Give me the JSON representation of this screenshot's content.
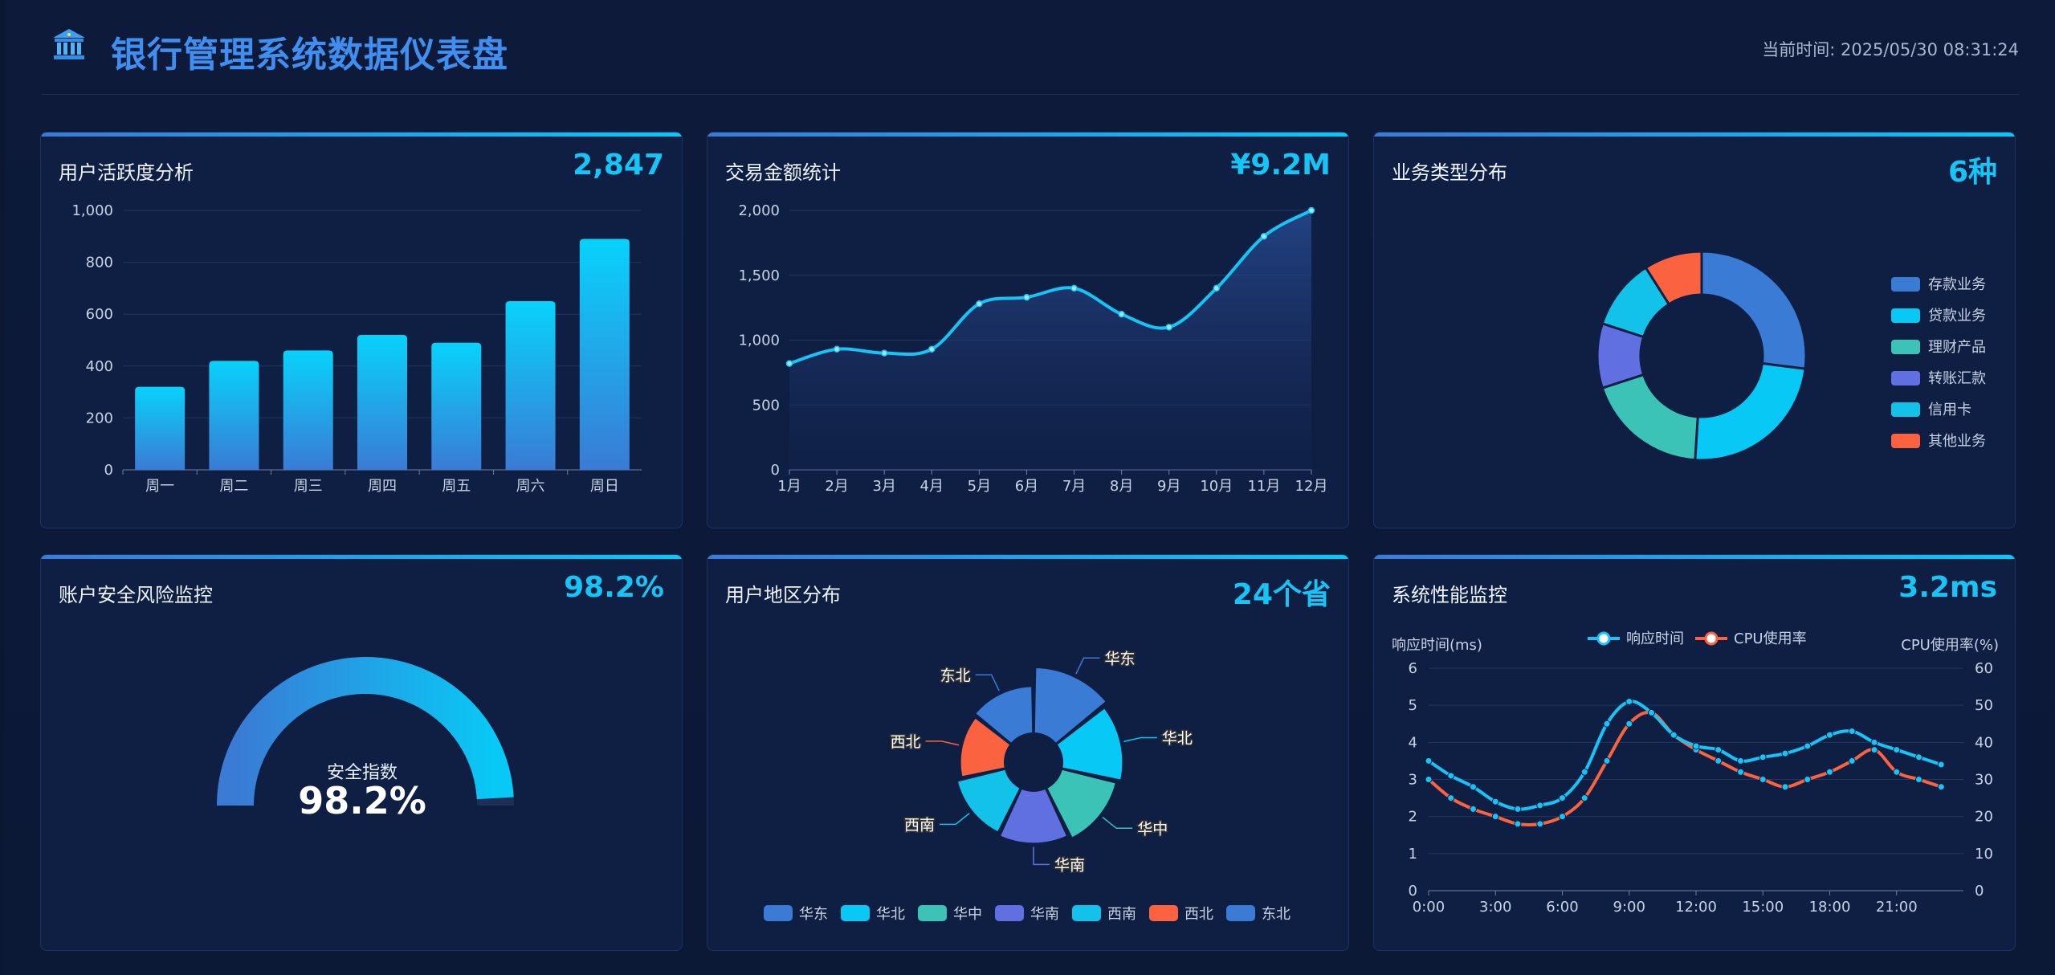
{
  "header": {
    "title": "银行管理系统数据仪表盘",
    "time_label": "当前时间: 2025/05/30 08:31:24",
    "logo_icon": "bank-icon"
  },
  "colors": {
    "accent": "#16c4f5",
    "blue": "#3a7bd5",
    "cyan": "#08c9f6",
    "teal": "#3cc3b8",
    "purple": "#6170e0",
    "orange": "#fb6340"
  },
  "cards": {
    "activity": {
      "title": "用户活跃度分析",
      "value": "2,847"
    },
    "amount": {
      "title": "交易金额统计",
      "value": "¥9.2M"
    },
    "business": {
      "title": "业务类型分布",
      "value": "6种"
    },
    "security": {
      "title": "账户安全风险监控",
      "value": "98.2%",
      "gauge_label": "安全指数",
      "gauge_value": "98.2%"
    },
    "region": {
      "title": "用户地区分布",
      "value": "24个省"
    },
    "performance": {
      "title": "系统性能监控",
      "value": "3.2ms"
    }
  },
  "chart_data": [
    {
      "id": "activity",
      "type": "bar",
      "categories": [
        "周一",
        "周二",
        "周三",
        "周四",
        "周五",
        "周六",
        "周日"
      ],
      "values": [
        320,
        420,
        460,
        520,
        490,
        650,
        890
      ],
      "ylim": [
        0,
        1000
      ],
      "yticks": [
        "0",
        "200",
        "400",
        "600",
        "800",
        "1,000"
      ],
      "grid": true
    },
    {
      "id": "amount",
      "type": "area",
      "categories": [
        "1月",
        "2月",
        "3月",
        "4月",
        "5月",
        "6月",
        "7月",
        "8月",
        "9月",
        "10月",
        "11月",
        "12月"
      ],
      "values": [
        820,
        930,
        900,
        930,
        1280,
        1330,
        1400,
        1200,
        1100,
        1400,
        1800,
        2000
      ],
      "ylim": [
        0,
        2000
      ],
      "yticks": [
        "0",
        "500",
        "1,000",
        "1,500",
        "2,000"
      ],
      "grid": true
    },
    {
      "id": "business",
      "type": "pie",
      "labels": [
        "存款业务",
        "贷款业务",
        "理财产品",
        "转账汇款",
        "信用卡",
        "其他业务"
      ],
      "values": [
        27,
        24,
        19,
        10,
        11,
        9
      ],
      "colors": [
        "#3a7bd5",
        "#08c9f6",
        "#3cc3b8",
        "#6170e0",
        "#12c2e9",
        "#fb6340"
      ],
      "legend": "right"
    },
    {
      "id": "security",
      "type": "gauge",
      "value": 98.2,
      "max": 100
    },
    {
      "id": "region",
      "type": "pie",
      "labels": [
        "华东",
        "华北",
        "华中",
        "华南",
        "西南",
        "西北",
        "东北"
      ],
      "values": [
        90,
        80,
        72,
        65,
        60,
        50,
        55
      ],
      "colors": [
        "#3a7bd5",
        "#08c9f6",
        "#3cc3b8",
        "#6170e0",
        "#12c2e9",
        "#fb6340",
        "#3a7bd5"
      ],
      "legend": "bottom"
    },
    {
      "id": "performance",
      "type": "line",
      "x": [
        "0:00",
        "1:00",
        "2:00",
        "3:00",
        "4:00",
        "5:00",
        "6:00",
        "7:00",
        "8:00",
        "9:00",
        "10:00",
        "11:00",
        "12:00",
        "13:00",
        "14:00",
        "15:00",
        "16:00",
        "17:00",
        "18:00",
        "19:00",
        "20:00",
        "21:00",
        "22:00",
        "23:00"
      ],
      "xticks": [
        "0:00",
        "3:00",
        "6:00",
        "9:00",
        "12:00",
        "15:00",
        "18:00",
        "21:00"
      ],
      "series": [
        {
          "name": "响应时间",
          "values": [
            3.5,
            3.1,
            2.8,
            2.4,
            2.2,
            2.3,
            2.5,
            3.2,
            4.5,
            5.1,
            4.8,
            4.2,
            3.9,
            3.8,
            3.5,
            3.6,
            3.7,
            3.9,
            4.2,
            4.3,
            4.0,
            3.8,
            3.6,
            3.4
          ],
          "color": "#16c4f5",
          "axis": "left"
        },
        {
          "name": "CPU使用率",
          "values": [
            30,
            25,
            22,
            20,
            18,
            18,
            20,
            25,
            35,
            45,
            48,
            42,
            38,
            35,
            32,
            30,
            28,
            30,
            32,
            35,
            38,
            32,
            30,
            28
          ],
          "color": "#fb6340",
          "axis": "right"
        }
      ],
      "ylabel_left": "响应时间(ms)",
      "ylabel_right": "CPU使用率(%)",
      "ylim_left": [
        0,
        6
      ],
      "ylim_right": [
        0,
        60
      ],
      "yticks_left": [
        "0",
        "1",
        "2",
        "3",
        "4",
        "5",
        "6"
      ],
      "yticks_right": [
        "0",
        "10",
        "20",
        "30",
        "40",
        "50",
        "60"
      ],
      "legend": "top"
    }
  ]
}
